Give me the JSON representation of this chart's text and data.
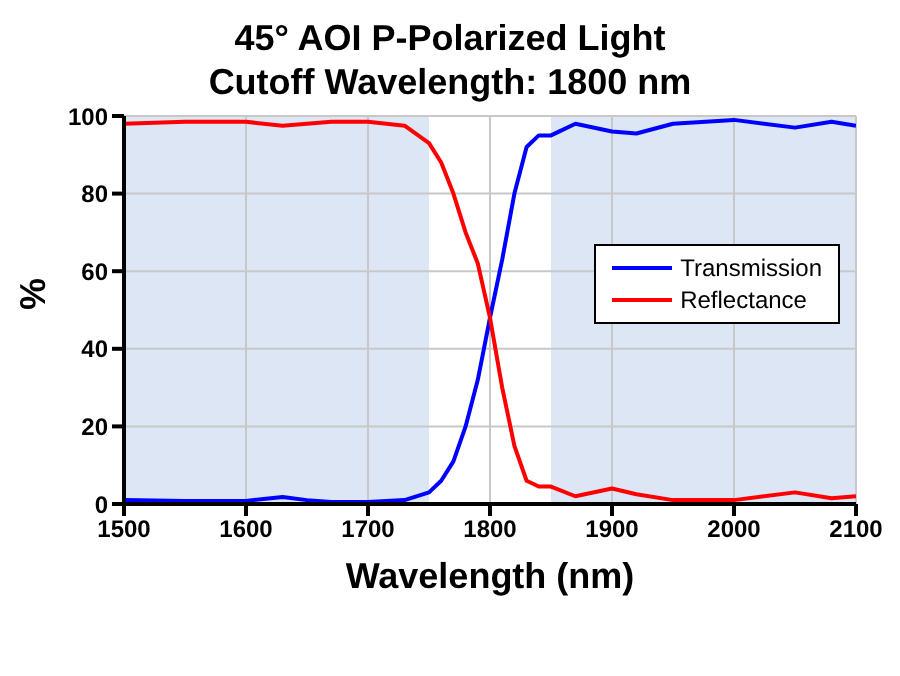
{
  "chart_data": {
    "type": "line",
    "title": "45° AOI P-Polarized Light",
    "subtitle": "Cutoff Wavelength: 1800 nm",
    "xlabel": "Wavelength (nm)",
    "ylabel": "%",
    "x": [
      1500,
      1550,
      1600,
      1630,
      1650,
      1670,
      1700,
      1730,
      1750,
      1760,
      1770,
      1780,
      1790,
      1795,
      1800,
      1810,
      1820,
      1830,
      1840,
      1850,
      1870,
      1900,
      1920,
      1950,
      2000,
      2050,
      2080,
      2100
    ],
    "series": [
      {
        "name": "Transmission",
        "color": "#0000ff",
        "values": [
          1,
          0.8,
          0.8,
          1.8,
          1,
          0.5,
          0.5,
          1,
          3,
          6,
          11,
          20,
          32,
          40,
          48,
          63,
          80,
          92,
          95,
          95,
          98,
          96,
          95.5,
          98,
          99,
          97,
          98.5,
          97.5
        ]
      },
      {
        "name": "Reflectance",
        "color": "#ff0000",
        "values": [
          98,
          98.5,
          98.5,
          97.5,
          98,
          98.5,
          98.5,
          97.5,
          93,
          88,
          80,
          70,
          62,
          55,
          48,
          30,
          15,
          6,
          4.5,
          4.5,
          2,
          4,
          2.5,
          1,
          1,
          3,
          1.5,
          2
        ]
      }
    ],
    "xlim": [
      1500,
      2100
    ],
    "xticks": [
      1500,
      1600,
      1700,
      1800,
      1900,
      2000,
      2100
    ],
    "ylim": [
      0,
      100
    ],
    "yticks": [
      0,
      20,
      40,
      60,
      80,
      100
    ],
    "bands": [
      {
        "axis": "x",
        "from": 1500,
        "to": 1750,
        "color": "#dce6f5"
      },
      {
        "axis": "x",
        "from": 1850,
        "to": 2100,
        "color": "#dce6f5"
      }
    ],
    "grid": true,
    "legend": "right",
    "marker": "none",
    "line_style": "solid"
  }
}
